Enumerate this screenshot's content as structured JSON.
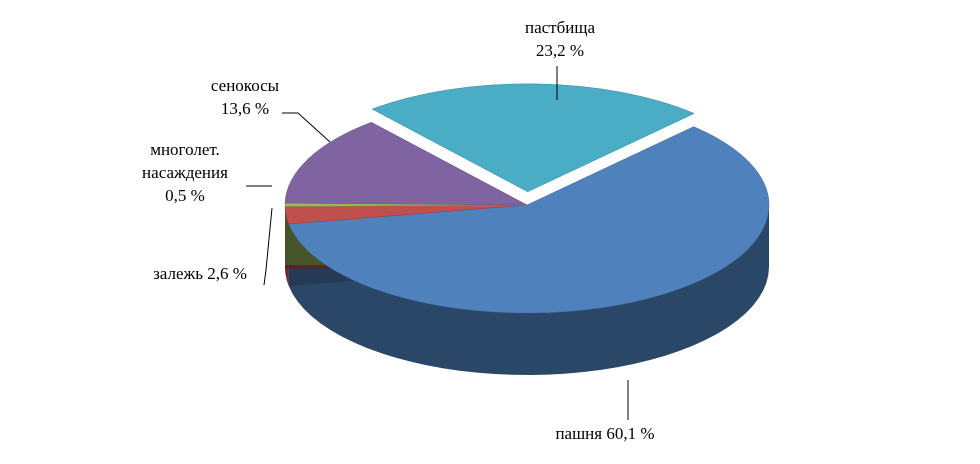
{
  "chart_data": {
    "type": "pie3d",
    "categories": [
      "пашня",
      "залежь",
      "многолет. насаждения",
      "сенокосы",
      "пастбища"
    ],
    "values": [
      60.1,
      2.6,
      0.5,
      13.6,
      23.2
    ],
    "value_labels": [
      "60,1 %",
      "2,6 %",
      "0,5 %",
      "13,6 %",
      "23,2 %"
    ],
    "colors": [
      "#4f81bd",
      "#c0504d",
      "#9bbb59",
      "#8064a2",
      "#4bacc6"
    ],
    "exploded": [
      false,
      false,
      false,
      false,
      true
    ]
  }
}
